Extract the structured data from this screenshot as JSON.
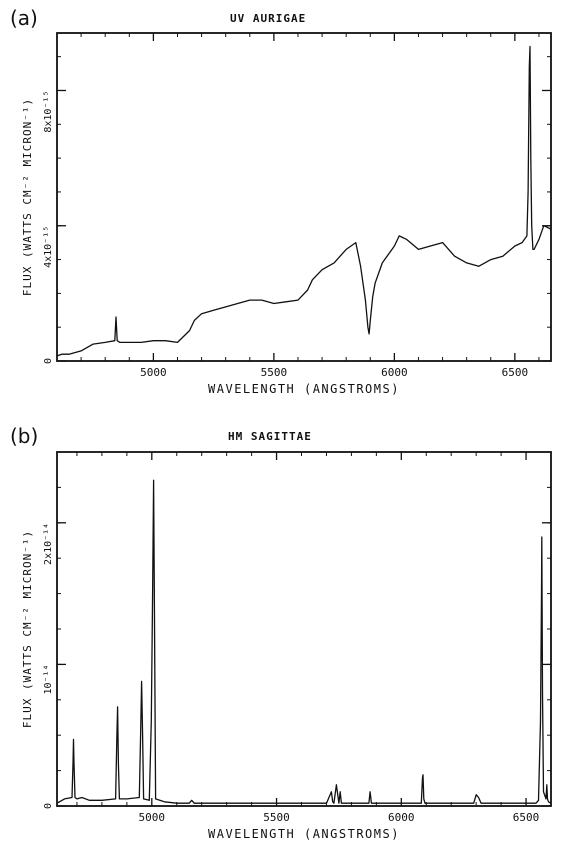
{
  "chart_data": [
    {
      "panel_label": "(a)",
      "type": "line",
      "title": "UV AURIGAE",
      "xlabel": "WAVELENGTH   (ANGSTROMS)",
      "ylabel": "FLUX  (WATTS CM⁻² MICRON⁻¹)",
      "xlim": [
        4600,
        6650
      ],
      "ylim": [
        0,
        9.7e-15
      ],
      "x_ticks": [
        5000,
        5500,
        6000,
        6500
      ],
      "x_tick_labels": [
        "5000",
        "5500",
        "6000",
        "6500"
      ],
      "y_ticks": [
        0,
        4e-15,
        8e-15
      ],
      "y_tick_labels": [
        "0",
        "4x10⁻¹⁵",
        "8x10⁻¹⁵"
      ],
      "grid": false,
      "series": [
        {
          "x": [
            4600,
            4620,
            4650,
            4700,
            4750,
            4800,
            4840,
            4845,
            4850,
            4855,
            4860,
            4900,
            4950,
            5000,
            5050,
            5100,
            5150,
            5170,
            5200,
            5250,
            5300,
            5350,
            5400,
            5450,
            5500,
            5550,
            5600,
            5620,
            5640,
            5660,
            5700,
            5750,
            5800,
            5840,
            5860,
            5870,
            5880,
            5890,
            5895,
            5900,
            5910,
            5920,
            5950,
            6000,
            6020,
            6050,
            6100,
            6150,
            6200,
            6250,
            6300,
            6350,
            6400,
            6450,
            6500,
            6530,
            6550,
            6555,
            6560,
            6563,
            6566,
            6570,
            6575,
            6580,
            6600,
            6620,
            6650
          ],
          "y": [
            1.5e-16,
            2e-16,
            2e-16,
            3e-16,
            5e-16,
            5.5e-16,
            6e-16,
            1.3e-15,
            6e-16,
            5.8e-16,
            5.5e-16,
            5.5e-16,
            5.5e-16,
            6e-16,
            6e-16,
            5.5e-16,
            9e-16,
            1.2e-15,
            1.4e-15,
            1.5e-15,
            1.6e-15,
            1.7e-15,
            1.8e-15,
            1.8e-15,
            1.7e-15,
            1.75e-15,
            1.8e-15,
            1.95e-15,
            2.1e-15,
            2.4e-15,
            2.7e-15,
            2.9e-15,
            3.3e-15,
            3.5e-15,
            2.8e-15,
            2.3e-15,
            1.8e-15,
            1e-15,
            8e-16,
            1.2e-15,
            1.9e-15,
            2.3e-15,
            2.9e-15,
            3.4e-15,
            3.7e-15,
            3.6e-15,
            3.3e-15,
            3.4e-15,
            3.5e-15,
            3.1e-15,
            2.9e-15,
            2.8e-15,
            3e-15,
            3.1e-15,
            3.4e-15,
            3.5e-15,
            3.7e-15,
            5e-15,
            8.7e-15,
            9.3e-15,
            6e-15,
            4e-15,
            3.3e-15,
            3.3e-15,
            3.6e-15,
            4e-15,
            3.9e-15
          ]
        }
      ]
    },
    {
      "panel_label": "(b)",
      "type": "line",
      "title": "HM SAGITTAE",
      "xlabel": "WAVELENGTH   (ANGSTROMS)",
      "ylabel": "FLUX  (WATTS CM⁻² MICRON⁻¹)",
      "xlim": [
        4620,
        6600
      ],
      "ylim": [
        0,
        2.5e-14
      ],
      "x_ticks": [
        5000,
        5500,
        6000,
        6500
      ],
      "x_tick_labels": [
        "5000",
        "5500",
        "6000",
        "6500"
      ],
      "y_ticks": [
        0,
        1e-14,
        2e-14
      ],
      "y_tick_labels": [
        "0",
        "10⁻¹⁴",
        "2x10⁻¹⁴"
      ],
      "grid": false,
      "series": [
        {
          "x": [
            4620,
            4650,
            4680,
            4684,
            4686,
            4688,
            4692,
            4700,
            4720,
            4750,
            4800,
            4855,
            4860,
            4863,
            4866,
            4870,
            4900,
            4950,
            4955,
            4959,
            4963,
            4967,
            4990,
            4998,
            5003,
            5007,
            5011,
            5015,
            5050,
            5100,
            5150,
            5160,
            5170,
            5200,
            5300,
            5400,
            5500,
            5600,
            5700,
            5720,
            5725,
            5730,
            5740,
            5750,
            5755,
            5760,
            5770,
            5800,
            5870,
            5875,
            5880,
            5890,
            5950,
            6000,
            6080,
            6085,
            6087,
            6090,
            6095,
            6150,
            6200,
            6290,
            6300,
            6310,
            6320,
            6350,
            6400,
            6450,
            6500,
            6540,
            6550,
            6558,
            6562,
            6563,
            6566,
            6570,
            6580,
            6583,
            6586,
            6590,
            6600
          ],
          "y": [
            2e-16,
            5e-16,
            6e-16,
            3e-15,
            4.7e-15,
            3e-15,
            6e-16,
            5e-16,
            6e-16,
            4e-16,
            4e-16,
            5e-16,
            5e-15,
            7e-15,
            3e-15,
            5e-16,
            5e-16,
            6e-16,
            5e-15,
            8.8e-15,
            5e-15,
            5e-16,
            4e-16,
            6e-15,
            1.5e-14,
            2.3e-14,
            1.2e-14,
            5e-16,
            3e-16,
            2e-16,
            2e-16,
            4e-16,
            2e-16,
            2e-16,
            2e-16,
            2e-16,
            2e-16,
            2e-16,
            2e-16,
            1e-15,
            3e-16,
            2e-16,
            1.5e-15,
            2e-16,
            1e-15,
            2e-16,
            2e-16,
            2e-16,
            2e-16,
            1e-15,
            2e-16,
            2e-16,
            2e-16,
            2e-16,
            2e-16,
            2e-15,
            2.2e-15,
            5e-16,
            2e-16,
            2e-16,
            2e-16,
            2e-16,
            8e-16,
            6e-16,
            2e-16,
            2e-16,
            2e-16,
            2e-16,
            2e-16,
            2e-16,
            4e-16,
            6e-15,
            1.5e-14,
            1.9e-14,
            8e-15,
            1e-15,
            5e-16,
            1.5e-15,
            5e-16,
            3e-16,
            2e-16
          ]
        }
      ]
    }
  ]
}
